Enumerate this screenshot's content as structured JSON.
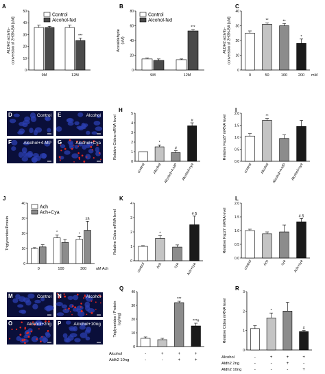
{
  "figure": {
    "panels": [
      {
        "id": "A",
        "letter": "A",
        "kind": "chart"
      },
      {
        "id": "B",
        "letter": "B",
        "kind": "chart"
      },
      {
        "id": "C",
        "letter": "C",
        "kind": "chart"
      },
      {
        "id": "D",
        "letter": "D",
        "kind": "micrograph",
        "label": "Control",
        "style": "nuclei"
      },
      {
        "id": "E",
        "letter": "E",
        "kind": "micrograph",
        "label": "Alcohol",
        "style": "nuclei"
      },
      {
        "id": "F",
        "letter": "F",
        "kind": "micrograph",
        "label": "Alcohol+4-MP",
        "style": "nuclei"
      },
      {
        "id": "G",
        "letter": "G",
        "kind": "micrograph",
        "label": "Alcohol+Cya",
        "style": "lipid"
      },
      {
        "id": "H",
        "letter": "H",
        "kind": "chart"
      },
      {
        "id": "I",
        "letter": "I",
        "kind": "chart"
      },
      {
        "id": "J",
        "letter": "J",
        "kind": "chart"
      },
      {
        "id": "K",
        "letter": "K",
        "kind": "chart"
      },
      {
        "id": "L",
        "letter": "L",
        "kind": "chart"
      },
      {
        "id": "M",
        "letter": "M",
        "kind": "micrograph",
        "label": "Control",
        "style": "nuclei"
      },
      {
        "id": "N",
        "letter": "N",
        "kind": "micrograph",
        "label": "Alcohol",
        "style": "lipid"
      },
      {
        "id": "O",
        "letter": "O",
        "kind": "micrograph",
        "label": "Alcohol+2ng",
        "style": "lipid"
      },
      {
        "id": "P",
        "letter": "P",
        "kind": "micrograph",
        "label": "Alcohol+10ng",
        "style": "nuclei"
      },
      {
        "id": "Q",
        "letter": "Q",
        "kind": "chart"
      },
      {
        "id": "R",
        "letter": "R",
        "kind": "chart"
      }
    ],
    "colors": {
      "white": "#ffffff",
      "dark": "#4a4a4a",
      "mid": "#8c8c8c",
      "light": "#c4c4c4",
      "black": "#1a1a1a",
      "cell_bg": "#0a0f3a",
      "nucleus": "#2b3fb0",
      "lipid": "#e0261e"
    }
  },
  "chart_data": [
    {
      "panel": "A",
      "type": "bar",
      "ylabel": "ALDH2 activity-\nconversion of 2H3N-BA [uM]",
      "ylim": [
        0,
        50
      ],
      "yticks": [
        0,
        10,
        20,
        30,
        40,
        50
      ],
      "categories": [
        "9M",
        "12M"
      ],
      "series": [
        {
          "name": "Control",
          "color": "white",
          "values": [
            36,
            36
          ],
          "errors": [
            2,
            2
          ]
        },
        {
          "name": "Alcohol-fed",
          "color": "dark",
          "values": [
            36,
            25
          ],
          "errors": [
            1,
            2
          ]
        }
      ],
      "annotations": [
        {
          "cat": 1,
          "series": 1,
          "text": "***"
        }
      ],
      "legend": "top-right"
    },
    {
      "panel": "B",
      "type": "bar",
      "ylabel": "Acetaldehyde\n(uM)",
      "ylim": [
        0,
        80
      ],
      "yticks": [
        0,
        20,
        40,
        60,
        80
      ],
      "categories": [
        "9M",
        "12M"
      ],
      "series": [
        {
          "name": "Control",
          "color": "white",
          "values": [
            15,
            14
          ],
          "errors": [
            1.5,
            1
          ]
        },
        {
          "name": "Alcohol-fed",
          "color": "dark",
          "values": [
            13,
            53
          ],
          "errors": [
            2,
            2
          ]
        }
      ],
      "annotations": [
        {
          "cat": 1,
          "series": 1,
          "text": "***"
        }
      ],
      "legend": "top-left"
    },
    {
      "panel": "C",
      "type": "bar",
      "ylabel": "ALDH2 activity-\nconversion of 2H3N-BA [uM]",
      "ylim": [
        0,
        40
      ],
      "yticks": [
        0,
        10,
        20,
        30,
        40
      ],
      "categories": [
        "0",
        "50",
        "100",
        "200"
      ],
      "xunit": "mM",
      "series": [
        {
          "name": "",
          "colors": [
            "white",
            "light",
            "mid",
            "black"
          ],
          "values": [
            25,
            31,
            30,
            18
          ],
          "errors": [
            1.5,
            1,
            1.5,
            3
          ]
        }
      ],
      "annotations": [
        {
          "cat": 1,
          "text": "**"
        },
        {
          "cat": 2,
          "text": "**"
        },
        {
          "cat": 3,
          "text": "*"
        }
      ]
    },
    {
      "panel": "H",
      "type": "bar",
      "ylabel": "Relative Cidea mRNA level",
      "ylim": [
        0,
        5
      ],
      "yticks": [
        0,
        1,
        2,
        3,
        4,
        5
      ],
      "categories": [
        "control",
        "Alcohol",
        "Alcohol+4-MP",
        "Alcohol+cya"
      ],
      "rotate": true,
      "series": [
        {
          "name": "",
          "colors": [
            "white",
            "light",
            "mid",
            "black"
          ],
          "values": [
            1,
            1.5,
            0.9,
            3.7
          ],
          "errors": [
            0,
            0.2,
            0.2,
            0.3
          ]
        }
      ],
      "annotations": [
        {
          "cat": 1,
          "text": "*"
        },
        {
          "cat": 2,
          "text": "#"
        },
        {
          "cat": 3,
          "text": "#"
        }
      ]
    },
    {
      "panel": "I",
      "type": "bar",
      "ylabel": "Relative Fsp27 mRNA level",
      "ylim": [
        0,
        2
      ],
      "yticks": [
        0.0,
        0.5,
        1.0,
        1.5,
        2.0
      ],
      "categories": [
        "control",
        "Alcohol",
        "Alcohol+4-MP",
        "Alcohol+cya"
      ],
      "rotate": true,
      "series": [
        {
          "name": "",
          "colors": [
            "white",
            "light",
            "mid",
            "black"
          ],
          "values": [
            1.05,
            1.7,
            0.95,
            1.45
          ],
          "errors": [
            0.1,
            0.08,
            0.15,
            0.25
          ]
        }
      ],
      "annotations": [
        {
          "cat": 1,
          "text": "**"
        }
      ]
    },
    {
      "panel": "J",
      "type": "bar",
      "ylabel": "Triglycerides/Protein",
      "ylim": [
        0,
        40
      ],
      "yticks": [
        0,
        10,
        20,
        30,
        40
      ],
      "categories": [
        "0",
        "100",
        "300"
      ],
      "xunit": "uM Ach",
      "series": [
        {
          "name": "Ach",
          "color": "white",
          "values": [
            10,
            17,
            16
          ],
          "errors": [
            0.5,
            2,
            2
          ]
        },
        {
          "name": "Ach+Cya",
          "color": "mid",
          "values": [
            11,
            14,
            22
          ],
          "errors": [
            1.5,
            2,
            6
          ]
        }
      ],
      "annotations": [
        {
          "cat": 1,
          "series": 0,
          "text": "*"
        },
        {
          "cat": 2,
          "series": 0,
          "text": "*"
        },
        {
          "cat": 2,
          "series": 1,
          "text": "#δ"
        }
      ],
      "legend": "top-left"
    },
    {
      "panel": "K",
      "type": "bar",
      "ylabel": "Relative Cidea mRNA level",
      "ylim": [
        0,
        4
      ],
      "yticks": [
        0,
        1,
        2,
        3,
        4
      ],
      "categories": [
        "control",
        "Ach",
        "cya",
        "Ach+cya"
      ],
      "rotate": true,
      "series": [
        {
          "name": "",
          "colors": [
            "white",
            "light",
            "mid",
            "black"
          ],
          "values": [
            1,
            1.55,
            0.95,
            2.5
          ],
          "errors": [
            0.05,
            0.2,
            0.15,
            0.6
          ]
        }
      ],
      "annotations": [
        {
          "cat": 1,
          "text": "*"
        },
        {
          "cat": 3,
          "text": "# δ"
        }
      ]
    },
    {
      "panel": "L",
      "type": "bar",
      "ylabel": "Relative Fsp27 mRNA level",
      "ylim": [
        0,
        2
      ],
      "yticks": [
        0.0,
        0.5,
        1.0,
        1.5,
        2.0
      ],
      "categories": [
        "control",
        "Ach",
        "cya",
        "Ach+cya"
      ],
      "rotate": true,
      "series": [
        {
          "name": "",
          "colors": [
            "white",
            "light",
            "mid",
            "black"
          ],
          "values": [
            1.0,
            0.88,
            0.95,
            1.32
          ],
          "errors": [
            0.05,
            0.07,
            0.25,
            0.12
          ]
        }
      ],
      "annotations": [
        {
          "cat": 3,
          "text": "# δ"
        }
      ]
    },
    {
      "panel": "Q",
      "type": "bar",
      "ylabel": "Triglycerides / Protein\n(ug/mg)",
      "ylim": [
        0,
        40
      ],
      "yticks": [
        0,
        10,
        20,
        30,
        40
      ],
      "categories": [
        "",
        "",
        "",
        ""
      ],
      "series": [
        {
          "name": "",
          "colors": [
            "white",
            "light",
            "mid",
            "black"
          ],
          "values": [
            6,
            5,
            32,
            15
          ],
          "errors": [
            1,
            1,
            1,
            2
          ]
        }
      ],
      "annotations": [
        {
          "cat": 2,
          "text": "***"
        },
        {
          "cat": 3,
          "text": "***#"
        }
      ],
      "condition_rows": [
        {
          "label": "Alcohol",
          "marks": [
            "-",
            "+",
            "+",
            "+"
          ]
        },
        {
          "label": "Aldh2 10ng",
          "marks": [
            "-",
            "-",
            "+",
            "+"
          ]
        }
      ]
    },
    {
      "panel": "R",
      "type": "bar",
      "ylabel": "Relative Cidea mRNA level",
      "ylim": [
        0,
        3
      ],
      "yticks": [
        0,
        1,
        2,
        3
      ],
      "categories": [
        "",
        "",
        "",
        ""
      ],
      "series": [
        {
          "name": "",
          "colors": [
            "white",
            "light",
            "mid",
            "black"
          ],
          "values": [
            1.1,
            1.65,
            2.0,
            0.95
          ],
          "errors": [
            0.15,
            0.25,
            0.45,
            0.05
          ]
        }
      ],
      "annotations": [
        {
          "cat": 1,
          "text": "*"
        },
        {
          "cat": 3,
          "text": "#"
        }
      ],
      "condition_rows": [
        {
          "label": "Alcohol",
          "marks": [
            "-",
            "+",
            "+",
            "+"
          ]
        },
        {
          "label": "Aldh2 2ng",
          "marks": [
            "-",
            "-",
            "+",
            "-"
          ]
        },
        {
          "label": "Aldh2 10ng",
          "marks": [
            "-",
            "-",
            "-",
            "+"
          ]
        }
      ]
    }
  ]
}
